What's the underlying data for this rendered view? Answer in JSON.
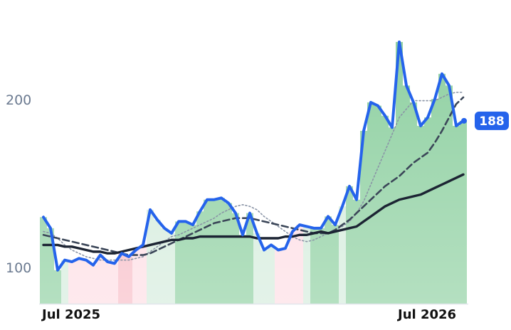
{
  "chart_data": {
    "type": "line",
    "categories": [
      "Jul 2025",
      null,
      null,
      null,
      null,
      null,
      null,
      null,
      null,
      null,
      null,
      null,
      null,
      null,
      null,
      null,
      null,
      null,
      null,
      null,
      null,
      null,
      null,
      null,
      null,
      null,
      null,
      null,
      null,
      null,
      null,
      null,
      null,
      null,
      null,
      null,
      null,
      null,
      null,
      null,
      null,
      null,
      null,
      null,
      null,
      null,
      null,
      null,
      null,
      null,
      "Jul 2026",
      null,
      null,
      null,
      null,
      null,
      null,
      null,
      null,
      null
    ],
    "series": [
      {
        "color": "#2563eb",
        "style": "solid",
        "values": [
          130.6,
          124,
          99,
          105,
          104,
          106,
          105,
          102,
          108,
          104,
          103,
          109,
          107,
          111,
          114,
          135,
          129,
          124,
          121,
          128,
          128,
          126,
          134,
          141,
          141,
          142,
          139,
          133,
          120,
          133,
          121,
          111,
          114,
          111,
          112,
          122,
          126,
          125,
          124,
          124,
          131,
          126,
          137,
          149,
          141,
          182,
          199,
          197,
          191,
          184,
          235,
          209,
          199,
          185,
          190,
          201,
          216,
          209,
          185,
          188
        ]
      },
      {
        "color": "#8a94a6",
        "style": "dotted",
        "values": [
          122,
          121,
          118,
          114,
          111,
          109,
          107,
          106,
          105,
          105,
          105,
          105,
          105,
          106,
          107,
          110,
          113,
          116,
          119,
          120,
          122,
          124,
          126,
          128,
          130,
          133,
          135,
          137,
          138,
          137,
          135,
          131,
          128,
          125,
          122,
          119,
          117,
          116,
          117,
          119,
          121,
          123,
          125,
          128,
          133,
          140,
          150,
          160,
          170,
          180,
          190,
          195,
          200,
          200,
          200,
          200,
          202,
          204,
          205,
          205
        ]
      },
      {
        "color": "#3b4658",
        "style": "dashed",
        "values": [
          120,
          119,
          118,
          117,
          116,
          115,
          114,
          113,
          112,
          111,
          110,
          109,
          108,
          108,
          108,
          109,
          111,
          113,
          115,
          117,
          119,
          121,
          123,
          125,
          127,
          128,
          129,
          130,
          130,
          130,
          129,
          128,
          127,
          126,
          125,
          124,
          123,
          122,
          121,
          121,
          121,
          123,
          126,
          129,
          133,
          137,
          141,
          145,
          149,
          152,
          155,
          159,
          163,
          166,
          169,
          175,
          182,
          190,
          198,
          202
        ]
      },
      {
        "color": "#1c2433",
        "style": "solid",
        "values": [
          114,
          114,
          114,
          113,
          113,
          112,
          111,
          110,
          110,
          109,
          109,
          110,
          111,
          112,
          113,
          114,
          115,
          116,
          117,
          117,
          118,
          118,
          119,
          119,
          119,
          119,
          119,
          119,
          119,
          119,
          118,
          118,
          118,
          118,
          119,
          119,
          120,
          120,
          121,
          122,
          121,
          122,
          123,
          124,
          125,
          128,
          131,
          134,
          137,
          139,
          141,
          142,
          143,
          144,
          146,
          148,
          150,
          152,
          154,
          156
        ]
      }
    ],
    "area_colors": [
      "#8ccf9f",
      "#8ccf9f",
      "#8ccf9f",
      "#d4ecdc",
      "#fddde4",
      "#fddde4",
      "#fddde4",
      "#fddde4",
      "#fddde4",
      "#fddde4",
      "#fddde4",
      "#f7bcc6",
      "#f7bcc6",
      "#fddde4",
      "#fddde4",
      "#d4ecdc",
      "#d4ecdc",
      "#d4ecdc",
      "#d4ecdc",
      "#8ccf9f",
      "#8ccf9f",
      "#8ccf9f",
      "#8ccf9f",
      "#8ccf9f",
      "#8ccf9f",
      "#8ccf9f",
      "#8ccf9f",
      "#8ccf9f",
      "#8ccf9f",
      "#8ccf9f",
      "#d4ecdc",
      "#d4ecdc",
      "#d4ecdc",
      "#fddde4",
      "#fddde4",
      "#fddde4",
      "#fddde4",
      "#d4ecdc",
      "#8ccf9f",
      "#8ccf9f",
      "#8ccf9f",
      "#8ccf9f",
      "#d4ecdc",
      "#8ccf9f",
      "#8ccf9f",
      "#8ccf9f",
      "#8ccf9f",
      "#8ccf9f",
      "#8ccf9f",
      "#8ccf9f",
      "#8ccf9f",
      "#8ccf9f",
      "#8ccf9f",
      "#8ccf9f",
      "#8ccf9f",
      "#8ccf9f",
      "#8ccf9f",
      "#8ccf9f",
      "#8ccf9f",
      "#8ccf9f"
    ],
    "ylim": [
      79,
      260
    ],
    "yticks": [
      100,
      200
    ]
  }
}
